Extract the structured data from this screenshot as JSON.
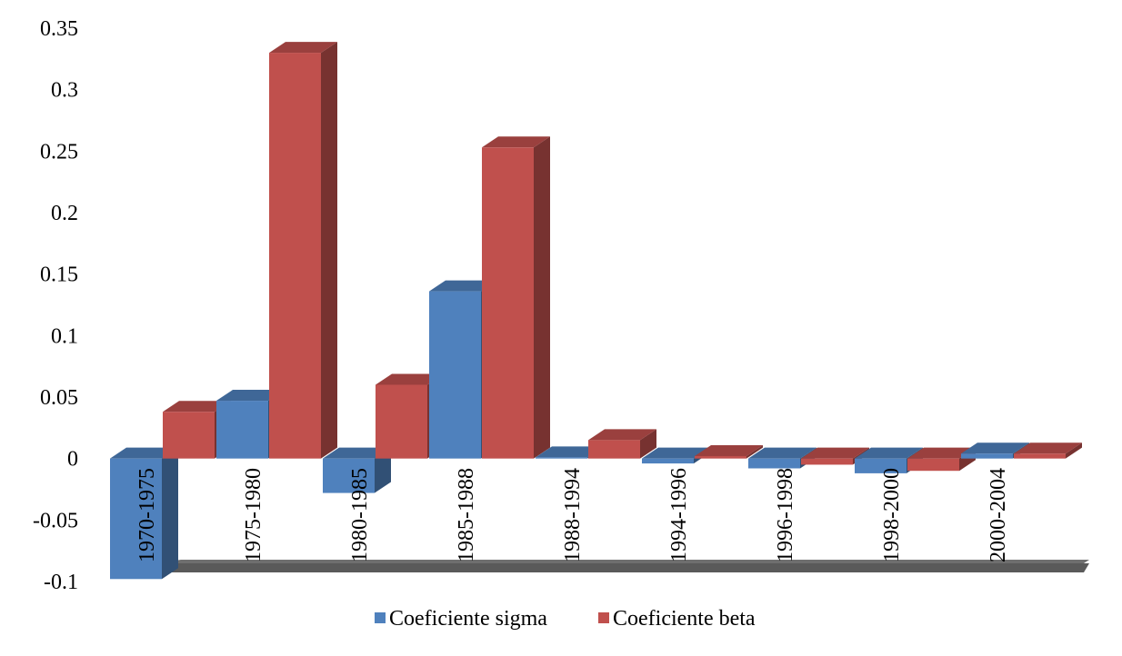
{
  "chart_data": {
    "type": "bar",
    "title": "",
    "xlabel": "",
    "ylabel": "",
    "ylim": [
      -0.1,
      0.35
    ],
    "yticks": [
      "0.35",
      "0.3",
      "0.25",
      "0.2",
      "0.15",
      "0.1",
      "0.05",
      "0",
      "-0.05",
      "-0.1"
    ],
    "grid": false,
    "legend": "bottom",
    "categories": [
      "1970-1975",
      "1975-1980",
      "1980-1985",
      "1985-1988",
      "1988-1994",
      "1994-1996",
      "1996-1998",
      "1998-2000",
      "2000-2004"
    ],
    "series": [
      {
        "name": "Coeficiente sigma",
        "color": "#4f81bd",
        "values": [
          -0.098,
          0.047,
          -0.028,
          0.136,
          0.001,
          -0.004,
          -0.008,
          -0.012,
          0.004
        ]
      },
      {
        "name": "Coeficiente beta",
        "color": "#c0504d",
        "values": [
          0.038,
          0.33,
          0.06,
          0.253,
          0.015,
          0.002,
          -0.005,
          -0.01,
          0.004
        ]
      }
    ]
  }
}
